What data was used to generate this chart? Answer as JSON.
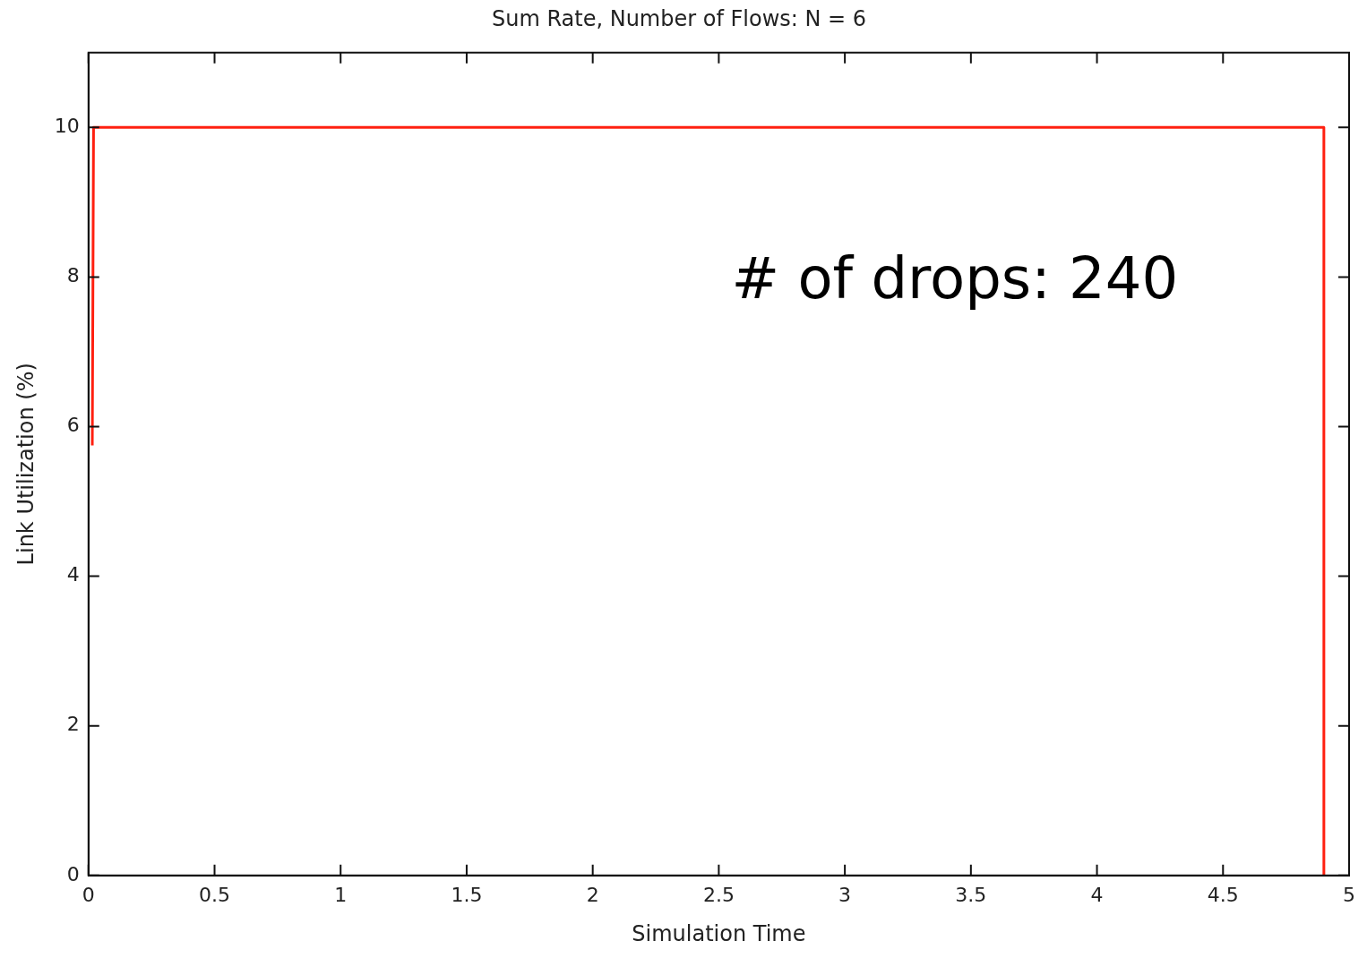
{
  "chart_data": {
    "type": "line",
    "title": "Sum Rate, Number of Flows: N = 6",
    "xlabel": "Simulation Time",
    "ylabel": "Link Utilization (%)",
    "annotations": [
      "# of drops: 240"
    ],
    "series": [
      {
        "color": "#ff2010",
        "x": [
          0.015,
          0.02,
          4.9,
          4.9
        ],
        "values": [
          5.75,
          10,
          10,
          0
        ]
      }
    ],
    "xlim": [
      0,
      5
    ],
    "xticks": [
      0,
      0.5,
      1,
      1.5,
      2,
      2.5,
      3,
      3.5,
      4,
      4.5,
      5
    ],
    "ylim": [
      0,
      11
    ],
    "yticks": [
      0,
      2,
      4,
      6,
      8,
      10
    ],
    "grid": false,
    "legend": false,
    "marker": "none",
    "line_style": "solid"
  }
}
